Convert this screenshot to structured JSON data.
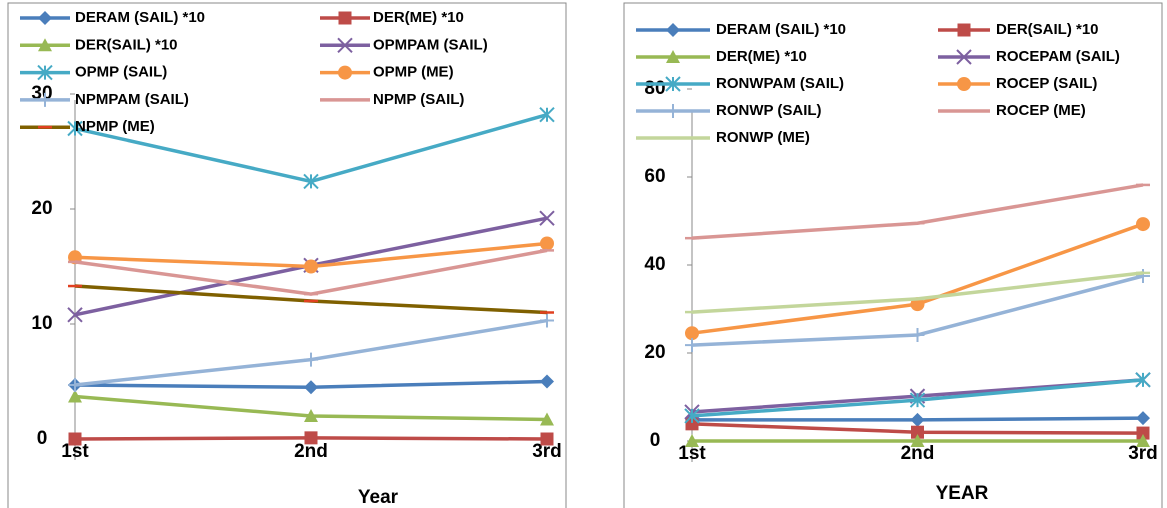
{
  "chart_data": [
    {
      "type": "line",
      "x_label": "Year",
      "categories": [
        "1st",
        "2nd",
        "3rd"
      ],
      "ylim": [
        0,
        30
      ],
      "yticks": [
        0,
        10,
        20,
        30
      ],
      "series": [
        {
          "name": "DERAM (SAIL) *10",
          "color": "#4a7ebb",
          "marker": "diamond",
          "values": [
            4.7,
            4.5,
            5.0
          ]
        },
        {
          "name": "DER(ME) *10",
          "color": "#be4b48",
          "marker": "square",
          "values": [
            0,
            0.1,
            0
          ]
        },
        {
          "name": "DER(SAIL) *10",
          "color": "#98b954",
          "marker": "triangle",
          "values": [
            3.7,
            2.0,
            1.7
          ]
        },
        {
          "name": "OPMPAM (SAIL)",
          "color": "#7d60a0",
          "marker": "x",
          "values": [
            10.8,
            15.1,
            19.2
          ]
        },
        {
          "name": "OPMP (SAIL)",
          "color": "#46aac5",
          "marker": "star",
          "values": [
            27.0,
            22.4,
            28.2
          ]
        },
        {
          "name": "OPMP (ME)",
          "color": "#f79646",
          "marker": "circle",
          "values": [
            15.8,
            15.0,
            17.0
          ]
        },
        {
          "name": "NPMPAM (SAIL)",
          "color": "#95b3d7",
          "marker": "plus",
          "values": [
            4.7,
            6.9,
            10.3
          ]
        },
        {
          "name": "NPMP (SAIL)",
          "color": "#d99694",
          "marker": "dash",
          "values": [
            15.4,
            12.6,
            16.4
          ]
        },
        {
          "name": "NPMP (ME)",
          "color": "#7f6000",
          "marker": "dash",
          "values": [
            13.3,
            12.0,
            11.0
          ]
        }
      ]
    },
    {
      "type": "line",
      "x_label": "YEAR",
      "categories": [
        "1st",
        "2nd",
        "3rd"
      ],
      "ylim": [
        0,
        80
      ],
      "yticks": [
        0,
        20,
        40,
        60,
        80
      ],
      "series": [
        {
          "name": "DERAM (SAIL) *10",
          "color": "#4a7ebb",
          "marker": "diamond",
          "values": [
            4.8,
            4.8,
            5.2
          ]
        },
        {
          "name": "DER(SAIL) *10",
          "color": "#be4b48",
          "marker": "square",
          "values": [
            3.9,
            2.0,
            1.8
          ]
        },
        {
          "name": "DER(ME) *10",
          "color": "#98b954",
          "marker": "triangle",
          "values": [
            0,
            0,
            0
          ]
        },
        {
          "name": "ROCEPAM (SAIL)",
          "color": "#7d60a0",
          "marker": "x",
          "values": [
            6.6,
            10.2,
            13.9
          ]
        },
        {
          "name": "RONWPAM (SAIL)",
          "color": "#46aac5",
          "marker": "star",
          "values": [
            5.7,
            9.3,
            13.9
          ]
        },
        {
          "name": "ROCEP (SAIL)",
          "color": "#f79646",
          "marker": "circle",
          "values": [
            24.5,
            31.1,
            49.3
          ]
        },
        {
          "name": "RONWP (SAIL)",
          "color": "#95b3d7",
          "marker": "plus",
          "values": [
            21.8,
            24.1,
            37.5
          ]
        },
        {
          "name": "ROCEP (ME)",
          "color": "#d99694",
          "marker": "dash",
          "values": [
            46.1,
            49.5,
            58.2
          ]
        },
        {
          "name": "RONWP (ME)",
          "color": "#c3d69b",
          "marker": "dash",
          "values": [
            29.3,
            32.3,
            38.2
          ]
        }
      ]
    }
  ]
}
